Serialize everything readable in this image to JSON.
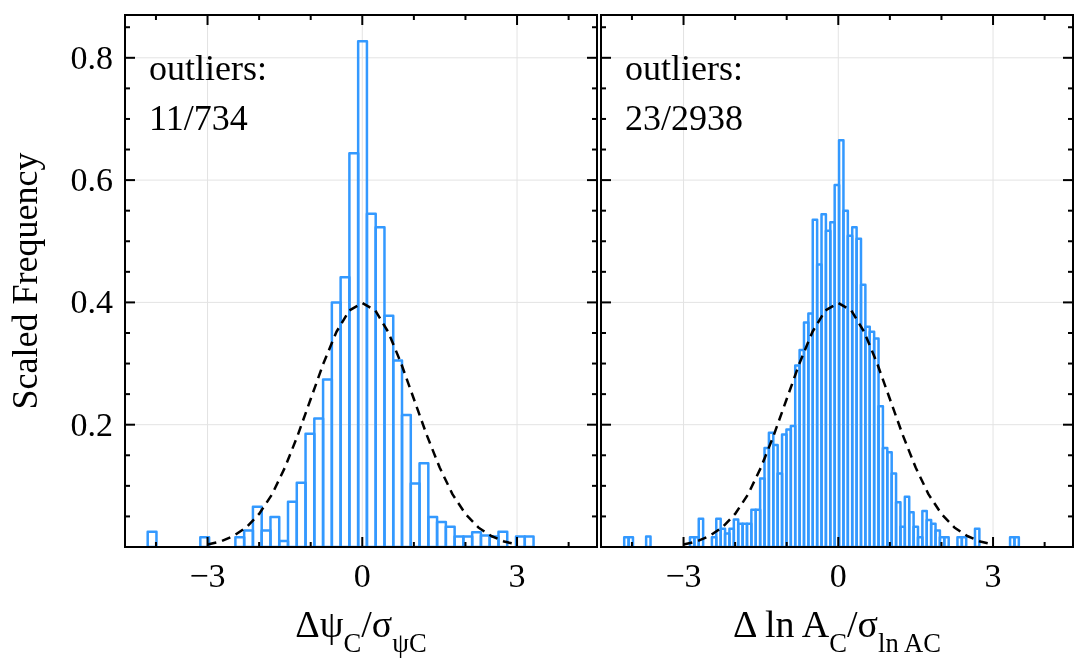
{
  "chart_data": [
    {
      "type": "histogram",
      "xlabel": "Δψ$_{C}$/σ$_{ψC}$",
      "ylabel": "Scaled Frequency",
      "annotations": [
        "outliers:\n11/734"
      ],
      "bins": [
        -4.16,
        -3.99,
        -3.82,
        -3.65,
        -3.48,
        -3.31,
        -3.14,
        -2.97,
        -2.8,
        -2.63,
        -2.46,
        -2.29,
        -2.12,
        -1.95,
        -1.78,
        -1.61,
        -1.44,
        -1.27,
        -1.1,
        -0.93,
        -0.76,
        -0.59,
        -0.42,
        -0.25,
        -0.08,
        0.09,
        0.26,
        0.43,
        0.6,
        0.77,
        0.94,
        1.11,
        1.28,
        1.45,
        1.62,
        1.79,
        1.96,
        2.13,
        2.3,
        2.47,
        2.64,
        2.81,
        2.98,
        3.15,
        3.32
      ],
      "values": [
        0.025,
        0,
        0,
        0,
        0,
        0,
        0.016,
        0,
        0,
        0,
        0.016,
        0.027,
        0.066,
        0.027,
        0.049,
        0.01,
        0.074,
        0.105,
        0.185,
        0.21,
        0.274,
        0.4,
        0.441,
        0.644,
        0.827,
        0.545,
        0.523,
        0.378,
        0.305,
        0.216,
        0.104,
        0.137,
        0.049,
        0.041,
        0.033,
        0.017,
        0.017,
        0.024,
        0.019,
        0.017,
        0.025,
        0,
        0.017,
        0.017
      ],
      "color": "#3399ff",
      "series": [
        {
          "type": "line",
          "color": "#000000",
          "line_style": "dashed",
          "x": [
            -3,
            -2.75,
            -2.5,
            -2.25,
            -2,
            -1.75,
            -1.5,
            -1.25,
            -1,
            -0.75,
            -0.5,
            -0.25,
            0,
            0.25,
            0.5,
            0.75,
            1,
            1.25,
            1.5,
            1.75,
            2,
            2.25,
            2.5,
            2.75,
            3
          ],
          "values": [
            0.004,
            0.009,
            0.018,
            0.032,
            0.054,
            0.086,
            0.13,
            0.183,
            0.242,
            0.301,
            0.352,
            0.387,
            0.399,
            0.387,
            0.352,
            0.301,
            0.242,
            0.183,
            0.13,
            0.086,
            0.054,
            0.032,
            0.018,
            0.009,
            0.004
          ]
        }
      ],
      "xlim": [
        -4.6,
        4.55
      ],
      "ylim": [
        0,
        0.87
      ],
      "xticks": [
        {
          "value": -4,
          "label": null
        },
        -3,
        {
          "value": -2,
          "label": null
        },
        {
          "value": -1,
          "label": null
        },
        0,
        {
          "value": 1,
          "label": null
        },
        {
          "value": 2,
          "label": null
        },
        3,
        {
          "value": 4,
          "label": null
        }
      ],
      "yticks": [
        {
          "value": 0.05,
          "label": null
        },
        {
          "value": 0.1,
          "label": null
        },
        {
          "value": 0.15,
          "label": null
        },
        0.2,
        {
          "value": 0.25,
          "label": null
        },
        {
          "value": 0.3,
          "label": null
        },
        {
          "value": 0.35,
          "label": null
        },
        0.4,
        {
          "value": 0.45,
          "label": null
        },
        {
          "value": 0.5,
          "label": null
        },
        {
          "value": 0.55,
          "label": null
        },
        0.6,
        {
          "value": 0.65,
          "label": null
        },
        {
          "value": 0.7,
          "label": null
        },
        {
          "value": 0.75,
          "label": null
        },
        0.8,
        {
          "value": 0.85,
          "label": null
        }
      ],
      "grid": true
    },
    {
      "type": "histogram",
      "xlabel": "Δ ln A$_{C}$/σ$_{ln AC}$",
      "annotations": [
        "outliers:\n23/2938"
      ],
      "bins": [
        -4.15,
        -4.065,
        -3.98,
        -3.895,
        -3.81,
        -3.725,
        -3.64,
        -3.555,
        -3.47,
        -3.385,
        -3.3,
        -3.215,
        -3.13,
        -3.045,
        -2.96,
        -2.875,
        -2.79,
        -2.705,
        -2.62,
        -2.535,
        -2.45,
        -2.365,
        -2.28,
        -2.195,
        -2.11,
        -2.025,
        -1.94,
        -1.855,
        -1.77,
        -1.685,
        -1.6,
        -1.515,
        -1.43,
        -1.345,
        -1.26,
        -1.175,
        -1.09,
        -1.005,
        -0.92,
        -0.835,
        -0.75,
        -0.665,
        -0.58,
        -0.495,
        -0.41,
        -0.325,
        -0.24,
        -0.155,
        -0.07,
        0.015,
        0.1,
        0.185,
        0.27,
        0.355,
        0.44,
        0.525,
        0.61,
        0.695,
        0.78,
        0.865,
        0.95,
        1.035,
        1.12,
        1.205,
        1.29,
        1.375,
        1.46,
        1.545,
        1.63,
        1.715,
        1.8,
        1.885,
        1.97,
        2.055,
        2.14,
        2.225,
        2.31,
        2.395,
        2.48,
        2.565,
        2.65,
        2.735,
        2.82,
        2.905,
        2.99,
        3.075,
        3.16,
        3.245,
        3.33,
        3.415,
        3.5
      ],
      "values": [
        0.016,
        0.016,
        0,
        0,
        0,
        0.017,
        0,
        0,
        0,
        0,
        0,
        0,
        0,
        0,
        0,
        0.016,
        0.016,
        0.046,
        0,
        0,
        0.016,
        0.046,
        0.03,
        0.022,
        0.03,
        0.045,
        0.038,
        0.038,
        0.038,
        0.061,
        0.061,
        0.112,
        0.162,
        0.187,
        0.167,
        0.12,
        0.184,
        0.192,
        0.198,
        0.297,
        0.322,
        0.367,
        0.382,
        0.535,
        0.462,
        0.544,
        0.517,
        0.531,
        0.592,
        0.665,
        0.55,
        0.509,
        0.523,
        0.504,
        0.429,
        0.36,
        0.352,
        0.341,
        0.23,
        0.162,
        0.155,
        0.12,
        0.073,
        0.033,
        0.082,
        0.057,
        0.033,
        0.016,
        0.059,
        0.044,
        0.038,
        0.027,
        0.016,
        0.016,
        0,
        0,
        0.016,
        0.016,
        0,
        0,
        0.03,
        0,
        0,
        0,
        0,
        0,
        0,
        0,
        0.016,
        0.016
      ],
      "color": "#3399ff",
      "series": [
        {
          "type": "line",
          "color": "#000000",
          "line_style": "dashed",
          "x": [
            -3,
            -2.75,
            -2.5,
            -2.25,
            -2,
            -1.75,
            -1.5,
            -1.25,
            -1,
            -0.75,
            -0.5,
            -0.25,
            0,
            0.25,
            0.5,
            0.75,
            1,
            1.25,
            1.5,
            1.75,
            2,
            2.25,
            2.5,
            2.75,
            3
          ],
          "values": [
            0.004,
            0.009,
            0.018,
            0.032,
            0.054,
            0.086,
            0.13,
            0.183,
            0.242,
            0.301,
            0.352,
            0.387,
            0.399,
            0.387,
            0.352,
            0.301,
            0.242,
            0.183,
            0.13,
            0.086,
            0.054,
            0.032,
            0.018,
            0.009,
            0.004
          ]
        }
      ],
      "xlim": [
        -4.6,
        4.55
      ],
      "ylim": [
        0,
        0.87
      ],
      "xticks": [
        {
          "value": -4,
          "label": null
        },
        -3,
        {
          "value": -2,
          "label": null
        },
        {
          "value": -1,
          "label": null
        },
        0,
        {
          "value": 1,
          "label": null
        },
        {
          "value": 2,
          "label": null
        },
        3,
        {
          "value": 4,
          "label": null
        }
      ],
      "yticks": [
        {
          "value": 0.05,
          "label": null
        },
        {
          "value": 0.1,
          "label": null
        },
        {
          "value": 0.15,
          "label": null
        },
        0.2,
        {
          "value": 0.25,
          "label": null
        },
        {
          "value": 0.3,
          "label": null
        },
        {
          "value": 0.35,
          "label": null
        },
        0.4,
        {
          "value": 0.45,
          "label": null
        },
        {
          "value": 0.5,
          "label": null
        },
        {
          "value": 0.55,
          "label": null
        },
        0.6,
        {
          "value": 0.65,
          "label": null
        },
        {
          "value": 0.7,
          "label": null
        },
        {
          "value": 0.75,
          "label": null
        },
        0.8,
        {
          "value": 0.85,
          "label": null
        }
      ],
      "grid": true,
      "tick_labels": "x"
    }
  ]
}
